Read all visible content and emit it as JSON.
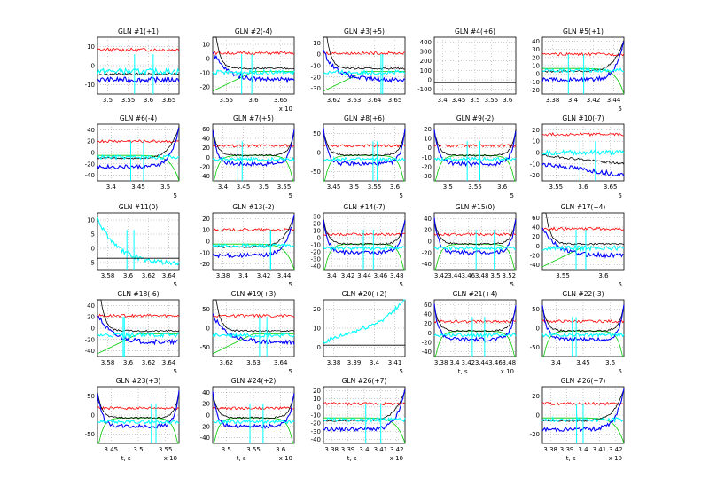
{
  "chart_data": [
    {
      "title": "GLN #1(+1)",
      "type": "line",
      "x_ticks": [
        "3.5",
        "3.55",
        "3.6",
        "3.65"
      ],
      "y_ticks": [
        "-10",
        "0",
        "10"
      ],
      "ylim": [
        -20,
        20
      ],
      "xlabel": "",
      "exp": "",
      "series_style": "flat"
    },
    {
      "title": "GLN #2(-4)",
      "type": "line",
      "x_ticks": [
        "3.55",
        "3.6",
        "3.65"
      ],
      "y_ticks": [
        "-20",
        "-10",
        "0",
        "10"
      ],
      "ylim": [
        -25,
        15
      ],
      "xlabel": "",
      "exp": "x 10",
      "series_style": "decay"
    },
    {
      "title": "GLN #3(+5)",
      "type": "line",
      "x_ticks": [
        "3.62",
        "3.63",
        "3.64",
        "3.65"
      ],
      "y_ticks": [
        "-30",
        "-20",
        "-10",
        "0",
        "10"
      ],
      "ylim": [
        -30,
        15
      ],
      "xlabel": "",
      "exp": "",
      "series_style": "decay"
    },
    {
      "title": "GLN #4(+6)",
      "type": "line",
      "x_ticks": [
        "3.4",
        "3.45",
        "3.5",
        "3.55",
        "3.6"
      ],
      "y_ticks": [
        "-100",
        "0",
        "100",
        "200",
        "300",
        "400"
      ],
      "ylim": [
        -100,
        400
      ],
      "xlabel": "",
      "exp": "",
      "series_style": "empty"
    },
    {
      "title": "GLN #5(+1)",
      "type": "line",
      "x_ticks": [
        "3.38",
        "3.4",
        "3.42",
        "3.44"
      ],
      "y_ticks": [
        "-20",
        "-10",
        "0",
        "10",
        "20",
        "30",
        "40"
      ],
      "ylim": [
        -25,
        40
      ],
      "xlabel": "",
      "exp": "5",
      "series_style": "rise"
    },
    {
      "title": "GLN #6(-4)",
      "type": "line",
      "x_ticks": [
        "3.4",
        "3.45",
        "3.5"
      ],
      "y_ticks": [
        "-40",
        "-20",
        "0",
        "20",
        "40"
      ],
      "ylim": [
        -45,
        45
      ],
      "xlabel": "",
      "exp": "5",
      "series_style": "rise"
    },
    {
      "title": "GLN #7(+5)",
      "type": "line",
      "x_ticks": [
        "3.4",
        "3.45",
        "3.5",
        "3.55"
      ],
      "y_ticks": [
        "-40",
        "-20",
        "0",
        "20",
        "40",
        "60"
      ],
      "ylim": [
        -50,
        70
      ],
      "xlabel": "",
      "exp": "5",
      "series_style": "bowl"
    },
    {
      "title": "GLN #8(+6)",
      "type": "line",
      "x_ticks": [
        "3.45",
        "3.5",
        "3.55",
        "3.6"
      ],
      "y_ticks": [
        "-50",
        "0",
        "50"
      ],
      "ylim": [
        -60,
        60
      ],
      "xlabel": "",
      "exp": "5",
      "series_style": "bowl"
    },
    {
      "title": "GLN #9(-2)",
      "type": "line",
      "x_ticks": [
        "3.5",
        "3.55",
        "3.6"
      ],
      "y_ticks": [
        "-30",
        "-20",
        "-10",
        "0",
        "10",
        "20"
      ],
      "ylim": [
        -35,
        20
      ],
      "xlabel": "",
      "exp": "5",
      "series_style": "bowl"
    },
    {
      "title": "GLN #10(-7)",
      "type": "line",
      "x_ticks": [
        "3.55",
        "3.6",
        "3.65"
      ],
      "y_ticks": [
        "-20",
        "-10",
        "0",
        "10",
        "20"
      ],
      "ylim": [
        -25,
        20
      ],
      "xlabel": "",
      "exp": "5",
      "series_style": "fall"
    },
    {
      "title": "GLN #11(0)",
      "type": "line",
      "x_ticks": [
        "3.58",
        "3.6",
        "3.62",
        "3.64"
      ],
      "y_ticks": [
        "-5",
        "0",
        "5",
        "10"
      ],
      "ylim": [
        -6,
        12
      ],
      "xlabel": "",
      "exp": "5",
      "series_style": "cyan_decay"
    },
    {
      "title": "GLN #13(-2)",
      "type": "line",
      "x_ticks": [
        "3.38",
        "3.4",
        "3.42",
        "3.44"
      ],
      "y_ticks": [
        "-20",
        "-10",
        "0",
        "10",
        "20"
      ],
      "ylim": [
        -25,
        25
      ],
      "xlabel": "",
      "exp": "5",
      "series_style": "rise"
    },
    {
      "title": "GLN #14(-7)",
      "type": "line",
      "x_ticks": [
        "3.4",
        "3.42",
        "3.44",
        "3.46",
        "3.48"
      ],
      "y_ticks": [
        "-40",
        "-30",
        "-20",
        "-10",
        "0",
        "10",
        "20",
        "30"
      ],
      "ylim": [
        -40,
        35
      ],
      "xlabel": "",
      "exp": "5",
      "series_style": "bowl"
    },
    {
      "title": "GLN #15(0)",
      "type": "line",
      "x_ticks": [
        "3.42",
        "3.44",
        "3.46",
        "3.48",
        "3.5",
        "3.52"
      ],
      "y_ticks": [
        "-40",
        "-20",
        "0",
        "20",
        "40"
      ],
      "ylim": [
        -45,
        45
      ],
      "xlabel": "",
      "exp": "5",
      "series_style": "bowl"
    },
    {
      "title": "GLN #17(+4)",
      "type": "line",
      "x_ticks": [
        "3.55",
        "3.6"
      ],
      "y_ticks": [
        "-40",
        "-20",
        "0",
        "20",
        "40",
        "60"
      ],
      "ylim": [
        -50,
        70
      ],
      "xlabel": "",
      "exp": "5",
      "series_style": "decay"
    },
    {
      "title": "GLN #18(-6)",
      "type": "line",
      "x_ticks": [
        "3.58",
        "3.6",
        "3.62",
        "3.64"
      ],
      "y_ticks": [
        "-40",
        "-20",
        "0",
        "20",
        "40"
      ],
      "ylim": [
        -45,
        45
      ],
      "xlabel": "",
      "exp": "5",
      "series_style": "decay"
    },
    {
      "title": "GLN #19(+3)",
      "type": "line",
      "x_ticks": [
        "3.62",
        "3.63",
        "3.64"
      ],
      "y_ticks": [
        "-50",
        "0",
        "50"
      ],
      "ylim": [
        -60,
        60
      ],
      "xlabel": "",
      "exp": "5",
      "series_style": "decay"
    },
    {
      "title": "GLN #20(+2)",
      "type": "line",
      "x_ticks": [
        "3.38",
        "3.39",
        "3.4",
        "3.41"
      ],
      "y_ticks": [
        "0",
        "10",
        "20"
      ],
      "ylim": [
        -5,
        25
      ],
      "xlabel": "",
      "exp": "5",
      "series_style": "cyan_rise"
    },
    {
      "title": "GLN #21(+4)",
      "type": "line",
      "x_ticks": [
        "3.38",
        "3.4",
        "3.42",
        "3.44",
        "3.46",
        "3.48"
      ],
      "y_ticks": [
        "-40",
        "-20",
        "0",
        "20",
        "40",
        "60"
      ],
      "ylim": [
        -45,
        65
      ],
      "xlabel": "t, s",
      "exp": "x 10",
      "series_style": "bowl"
    },
    {
      "title": "GLN #22(-3)",
      "type": "line",
      "x_ticks": [
        "3.4",
        "3.45",
        "3.5"
      ],
      "y_ticks": [
        "-50",
        "0",
        "50"
      ],
      "ylim": [
        -60,
        60
      ],
      "xlabel": "",
      "exp": "5",
      "series_style": "bowl"
    },
    {
      "title": "GLN #23(+3)",
      "type": "line",
      "x_ticks": [
        "3.45",
        "3.5",
        "3.55"
      ],
      "y_ticks": [
        "-50",
        "0",
        "50"
      ],
      "ylim": [
        -60,
        60
      ],
      "xlabel": "t, s",
      "exp": "x 10",
      "series_style": "bowl"
    },
    {
      "title": "GLN #24(+2)",
      "type": "line",
      "x_ticks": [
        "3.5",
        "3.55",
        "3.6"
      ],
      "y_ticks": [
        "-40",
        "-20",
        "0",
        "20",
        "40"
      ],
      "ylim": [
        -45,
        45
      ],
      "xlabel": "t, s",
      "exp": "x 10",
      "series_style": "bowl"
    },
    {
      "title": "GLN #26(+7)",
      "type": "line",
      "x_ticks": [
        "3.38",
        "3.39",
        "3.4",
        "3.41",
        "3.42"
      ],
      "y_ticks": [
        "-40",
        "-30",
        "-20",
        "-10",
        "0",
        "10",
        "20"
      ],
      "ylim": [
        -40,
        25
      ],
      "xlabel": "t, s",
      "exp": "x 10",
      "series_style": "rise"
    },
    {
      "title": "GLN #26(+7)",
      "type": "line",
      "x_ticks": [
        "3.38",
        "3.39",
        "3.4",
        "3.41",
        "3.42"
      ],
      "y_ticks": [
        "-20",
        "0",
        "20"
      ],
      "ylim": [
        -30,
        30
      ],
      "xlabel": "t, s",
      "exp": "x 10",
      "series_style": "rise"
    }
  ],
  "colors": {
    "red": "#ff0000",
    "black": "#000000",
    "blue": "#0000ff",
    "cyan": "#00ffff",
    "green": "#00cc00",
    "grid": "#9a9a9a"
  }
}
